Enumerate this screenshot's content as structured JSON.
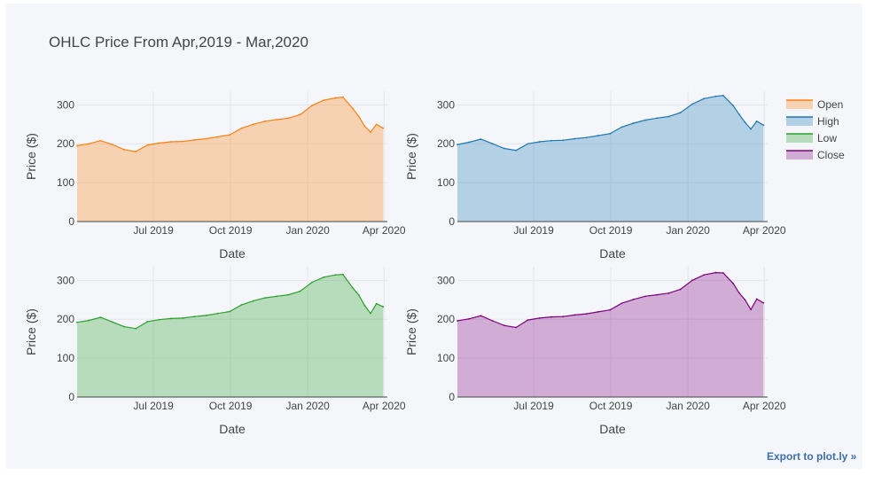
{
  "title": "OHLC Price From Apr,2019 - Mar,2020",
  "export_label": "Export to plot.ly »",
  "chart_data": {
    "type": "area",
    "title": "OHLC Price From Apr,2019 - Mar,2020",
    "xlabel": "Date",
    "ylabel": "Price ($)",
    "xlim": [
      "2019-04-01",
      "2020-04-05"
    ],
    "ylim": [
      0,
      335
    ],
    "x_ticks": [
      {
        "value": "2019-07-01",
        "label": "Jul 2019"
      },
      {
        "value": "2019-10-01",
        "label": "Oct 2019"
      },
      {
        "value": "2020-01-01",
        "label": "Jan 2020"
      },
      {
        "value": "2020-04-01",
        "label": "Apr 2020"
      }
    ],
    "y_ticks": [
      0,
      100,
      200,
      300
    ],
    "grid": true,
    "legend_position": "right",
    "x": [
      "2019-04-01",
      "2019-04-15",
      "2019-04-29",
      "2019-05-13",
      "2019-05-27",
      "2019-06-10",
      "2019-06-24",
      "2019-07-08",
      "2019-07-22",
      "2019-08-05",
      "2019-08-19",
      "2019-09-02",
      "2019-09-16",
      "2019-09-30",
      "2019-10-14",
      "2019-10-28",
      "2019-11-11",
      "2019-11-25",
      "2019-12-09",
      "2019-12-23",
      "2020-01-06",
      "2020-01-20",
      "2020-02-03",
      "2020-02-12",
      "2020-02-24",
      "2020-03-02",
      "2020-03-09",
      "2020-03-16",
      "2020-03-23",
      "2020-03-31"
    ],
    "series": [
      {
        "name": "Open",
        "color": "#ff7f0e",
        "values": [
          195,
          200,
          208,
          198,
          185,
          180,
          197,
          202,
          205,
          206,
          210,
          213,
          218,
          223,
          240,
          250,
          258,
          262,
          266,
          275,
          298,
          312,
          318,
          320,
          290,
          270,
          245,
          230,
          250,
          240
        ]
      },
      {
        "name": "High",
        "color": "#1f77b4",
        "values": [
          198,
          204,
          212,
          200,
          188,
          183,
          200,
          205,
          208,
          209,
          213,
          216,
          221,
          226,
          243,
          253,
          261,
          266,
          270,
          280,
          302,
          316,
          322,
          324,
          298,
          276,
          255,
          238,
          258,
          248
        ]
      },
      {
        "name": "Low",
        "color": "#2ca02c",
        "values": [
          192,
          197,
          205,
          193,
          181,
          176,
          194,
          199,
          202,
          203,
          207,
          210,
          215,
          220,
          237,
          247,
          255,
          259,
          263,
          272,
          295,
          308,
          314,
          315,
          280,
          262,
          235,
          215,
          240,
          232
        ]
      },
      {
        "name": "Close",
        "color": "#800080",
        "values": [
          196,
          201,
          209,
          196,
          184,
          179,
          198,
          203,
          206,
          207,
          211,
          214,
          219,
          224,
          241,
          251,
          259,
          263,
          267,
          277,
          300,
          314,
          320,
          319,
          292,
          268,
          250,
          225,
          252,
          242
        ]
      }
    ]
  }
}
